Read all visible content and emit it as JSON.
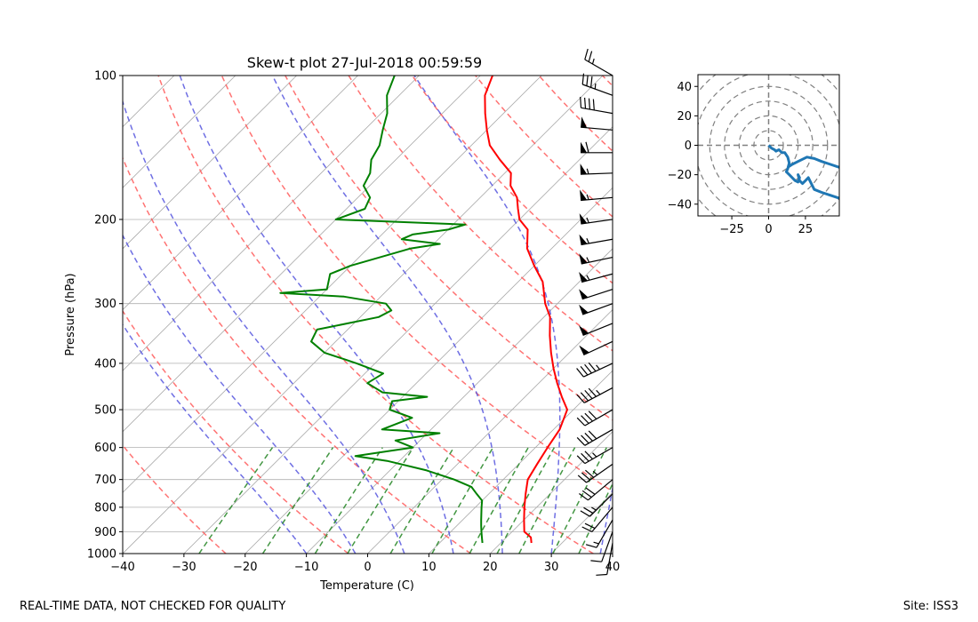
{
  "chart_data": [
    {
      "type": "line",
      "chart_subtype": "skew-t",
      "title": "Skew-t plot 27-Jul-2018 00:59:59",
      "xlabel": "Temperature (C)",
      "ylabel": "Pressure (hPa)",
      "xlim": [
        -40,
        40
      ],
      "ylim": [
        1000,
        100
      ],
      "x_ticks": [
        -40,
        -30,
        -20,
        -10,
        0,
        10,
        20,
        30,
        40
      ],
      "y_ticks": [
        1000,
        900,
        800,
        700,
        600,
        500,
        400,
        300,
        200,
        100
      ],
      "grid": true,
      "colors": {
        "temperature": "#ff0000",
        "dewpoint": "#008000",
        "dry_adiabats": "#ff5050",
        "moist_adiabats": "#4b4bdc",
        "mixing_ratio": "#2e8b2e",
        "isotherms": "#999999",
        "barbs": "#000000"
      },
      "series": [
        {
          "name": "Temperature",
          "points": [
            [
              25,
              950
            ],
            [
              24,
              925
            ],
            [
              22,
              900
            ],
            [
              20,
              850
            ],
            [
              18,
              800
            ],
            [
              16,
              750
            ],
            [
              14,
              700
            ],
            [
              13,
              650
            ],
            [
              12,
              600
            ],
            [
              11,
              550
            ],
            [
              9,
              500
            ],
            [
              6,
              470
            ],
            [
              3,
              440
            ],
            [
              0,
              410
            ],
            [
              -3,
              380
            ],
            [
              -6,
              350
            ],
            [
              -9,
              320
            ],
            [
              -12,
              300
            ],
            [
              -16,
              270
            ],
            [
              -20,
              250
            ],
            [
              -24,
              230
            ],
            [
              -27,
              210
            ],
            [
              -30,
              200
            ],
            [
              -32,
              190
            ],
            [
              -34,
              180
            ],
            [
              -37,
              170
            ],
            [
              -39,
              160
            ],
            [
              -43,
              150
            ],
            [
              -47,
              140
            ],
            [
              -50,
              130
            ],
            [
              -53,
              120
            ],
            [
              -56,
              110
            ],
            [
              -58,
              100
            ]
          ]
        },
        {
          "name": "Dewpoint",
          "points": [
            [
              17,
              950
            ],
            [
              16,
              925
            ],
            [
              15,
              900
            ],
            [
              14,
              875
            ],
            [
              13,
              850
            ],
            [
              11,
              800
            ],
            [
              10,
              775
            ],
            [
              8,
              750
            ],
            [
              6,
              725
            ],
            [
              2,
              700
            ],
            [
              -4,
              670
            ],
            [
              -12,
              640
            ],
            [
              -18,
              625
            ],
            [
              -10,
              600
            ],
            [
              -14,
              580
            ],
            [
              -8,
              560
            ],
            [
              -18,
              550
            ],
            [
              -15,
              520
            ],
            [
              -20,
              500
            ],
            [
              -21,
              480
            ],
            [
              -16,
              470
            ],
            [
              -24,
              460
            ],
            [
              -28,
              440
            ],
            [
              -27,
              420
            ],
            [
              -33,
              400
            ],
            [
              -40,
              380
            ],
            [
              -44,
              360
            ],
            [
              -45,
              340
            ],
            [
              -37,
              320
            ],
            [
              -36,
              310
            ],
            [
              -38,
              300
            ],
            [
              -46,
              290
            ],
            [
              -57,
              285
            ],
            [
              -50,
              280
            ],
            [
              -52,
              260
            ],
            [
              -50,
              250
            ],
            [
              -43,
              230
            ],
            [
              -39,
              225
            ],
            [
              -46,
              220
            ],
            [
              -45,
              215
            ],
            [
              -40,
              210
            ],
            [
              -38,
              205
            ],
            [
              -60,
              200
            ],
            [
              -57,
              190
            ],
            [
              -58,
              180
            ],
            [
              -61,
              170
            ],
            [
              -62,
              160
            ],
            [
              -64,
              150
            ],
            [
              -65,
              140
            ],
            [
              -67,
              130
            ],
            [
              -69,
              120
            ],
            [
              -72,
              110
            ],
            [
              -74,
              100
            ]
          ]
        }
      ],
      "wind_barbs": [
        {
          "pressure": 100,
          "speed_kt": 25,
          "direction_deg": 300
        },
        {
          "pressure": 110,
          "speed_kt": 35,
          "direction_deg": 290
        },
        {
          "pressure": 120,
          "speed_kt": 40,
          "direction_deg": 280
        },
        {
          "pressure": 130,
          "speed_kt": 50,
          "direction_deg": 275
        },
        {
          "pressure": 145,
          "speed_kt": 60,
          "direction_deg": 270
        },
        {
          "pressure": 160,
          "speed_kt": 55,
          "direction_deg": 268
        },
        {
          "pressure": 180,
          "speed_kt": 55,
          "direction_deg": 265
        },
        {
          "pressure": 200,
          "speed_kt": 55,
          "direction_deg": 262
        },
        {
          "pressure": 220,
          "speed_kt": 55,
          "direction_deg": 260
        },
        {
          "pressure": 240,
          "speed_kt": 55,
          "direction_deg": 258
        },
        {
          "pressure": 260,
          "speed_kt": 55,
          "direction_deg": 255
        },
        {
          "pressure": 280,
          "speed_kt": 50,
          "direction_deg": 252
        },
        {
          "pressure": 300,
          "speed_kt": 50,
          "direction_deg": 250
        },
        {
          "pressure": 330,
          "speed_kt": 50,
          "direction_deg": 248
        },
        {
          "pressure": 360,
          "speed_kt": 50,
          "direction_deg": 245
        },
        {
          "pressure": 400,
          "speed_kt": 45,
          "direction_deg": 245
        },
        {
          "pressure": 450,
          "speed_kt": 45,
          "direction_deg": 242
        },
        {
          "pressure": 500,
          "speed_kt": 40,
          "direction_deg": 240
        },
        {
          "pressure": 550,
          "speed_kt": 40,
          "direction_deg": 240
        },
        {
          "pressure": 600,
          "speed_kt": 35,
          "direction_deg": 240
        },
        {
          "pressure": 650,
          "speed_kt": 35,
          "direction_deg": 235
        },
        {
          "pressure": 700,
          "speed_kt": 30,
          "direction_deg": 230
        },
        {
          "pressure": 750,
          "speed_kt": 25,
          "direction_deg": 225
        },
        {
          "pressure": 800,
          "speed_kt": 20,
          "direction_deg": 220
        },
        {
          "pressure": 850,
          "speed_kt": 15,
          "direction_deg": 210
        },
        {
          "pressure": 900,
          "speed_kt": 10,
          "direction_deg": 200
        },
        {
          "pressure": 950,
          "speed_kt": 10,
          "direction_deg": 190
        }
      ]
    },
    {
      "type": "line",
      "chart_subtype": "hodograph",
      "title": "",
      "xlim": [
        -48,
        48
      ],
      "ylim": [
        -48,
        48
      ],
      "x_ticks": [
        -25,
        0,
        25
      ],
      "y_ticks": [
        -40,
        -20,
        0,
        20,
        40
      ],
      "rings": [
        10,
        20,
        30,
        40,
        50,
        60
      ],
      "color": "#1f77b4",
      "series": [
        {
          "name": "Hodograph",
          "points": [
            [
              0,
              0
            ],
            [
              2,
              -2
            ],
            [
              4,
              -3
            ],
            [
              5,
              -4
            ],
            [
              7,
              -3
            ],
            [
              9,
              -5
            ],
            [
              11,
              -5
            ],
            [
              13,
              -8
            ],
            [
              14,
              -12
            ],
            [
              13,
              -16
            ],
            [
              12,
              -18
            ],
            [
              14,
              -20
            ],
            [
              16,
              -22
            ],
            [
              18,
              -24
            ],
            [
              20,
              -25
            ],
            [
              21,
              -22
            ],
            [
              20,
              -20
            ],
            [
              21,
              -24
            ],
            [
              23,
              -26
            ],
            [
              25,
              -24
            ],
            [
              27,
              -22
            ],
            [
              29,
              -26
            ],
            [
              31,
              -30
            ],
            [
              36,
              -32
            ],
            [
              42,
              -34
            ],
            [
              48,
              -36
            ]
          ]
        },
        {
          "name": "Upper",
          "points": [
            [
              13,
              -15
            ],
            [
              16,
              -13
            ],
            [
              20,
              -11
            ],
            [
              26,
              -8
            ],
            [
              31,
              -9
            ],
            [
              36,
              -11
            ],
            [
              42,
              -13
            ],
            [
              48,
              -15
            ]
          ]
        }
      ]
    }
  ],
  "footer": {
    "left_note": "REAL-TIME DATA, NOT CHECKED FOR QUALITY",
    "site": "Site: ISS3"
  }
}
